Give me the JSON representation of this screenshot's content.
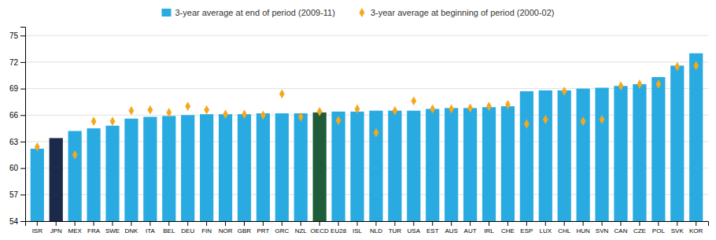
{
  "chart_data": {
    "type": "bar",
    "categories": [
      "ISR",
      "JPN",
      "MEX",
      "FRA",
      "SWE",
      "DNK",
      "ITA",
      "BEL",
      "DEU",
      "FIN",
      "NOR",
      "GBR",
      "PRT",
      "GRC",
      "NZL",
      "OECD",
      "EU28",
      "ISL",
      "NLD",
      "TUR",
      "USA",
      "EST",
      "AUS",
      "AUT",
      "IRL",
      "CHE",
      "ESP",
      "LUX",
      "CHL",
      "HUN",
      "SVN",
      "CAN",
      "CZE",
      "POL",
      "SVK",
      "KOR"
    ],
    "series": [
      {
        "name": "3-year average at end of period (2009-11)",
        "type": "bar",
        "color": "#29abe2",
        "colors": [
          "#29abe2",
          "#1b2a4a",
          "#29abe2",
          "#29abe2",
          "#29abe2",
          "#29abe2",
          "#29abe2",
          "#29abe2",
          "#29abe2",
          "#29abe2",
          "#29abe2",
          "#29abe2",
          "#29abe2",
          "#29abe2",
          "#29abe2",
          "#1e5c3a",
          "#29abe2",
          "#29abe2",
          "#29abe2",
          "#29abe2",
          "#29abe2",
          "#29abe2",
          "#29abe2",
          "#29abe2",
          "#29abe2",
          "#29abe2",
          "#29abe2",
          "#29abe2",
          "#29abe2",
          "#29abe2",
          "#29abe2",
          "#29abe2",
          "#29abe2",
          "#29abe2",
          "#29abe2",
          "#29abe2"
        ],
        "values": [
          62.2,
          63.4,
          64.2,
          64.5,
          64.8,
          65.6,
          65.8,
          65.9,
          66.0,
          66.1,
          66.1,
          66.1,
          66.2,
          66.2,
          66.2,
          66.3,
          66.4,
          66.4,
          66.5,
          66.5,
          66.5,
          66.7,
          66.8,
          66.8,
          66.9,
          67.0,
          68.7,
          68.8,
          68.8,
          69.0,
          69.1,
          69.3,
          69.5,
          70.3,
          71.6,
          73.0
        ]
      },
      {
        "name": "3-year average at beginning of period (2000-02)",
        "type": "scatter",
        "marker": "diamond",
        "color": "#f5a81c",
        "values": [
          62.4,
          null,
          61.5,
          65.3,
          65.3,
          66.5,
          66.6,
          66.3,
          67.0,
          66.6,
          66.1,
          66.1,
          66.0,
          68.4,
          65.8,
          66.4,
          65.4,
          66.7,
          64.0,
          66.5,
          67.6,
          66.7,
          66.7,
          66.8,
          67.0,
          67.2,
          65.0,
          65.5,
          68.7,
          65.3,
          65.5,
          69.3,
          69.5,
          69.5,
          71.5,
          71.6
        ]
      }
    ],
    "ylim": [
      54,
      76
    ],
    "yticks": [
      54,
      57,
      60,
      63,
      66,
      69,
      72,
      75
    ],
    "grid": true,
    "legend": "top"
  }
}
